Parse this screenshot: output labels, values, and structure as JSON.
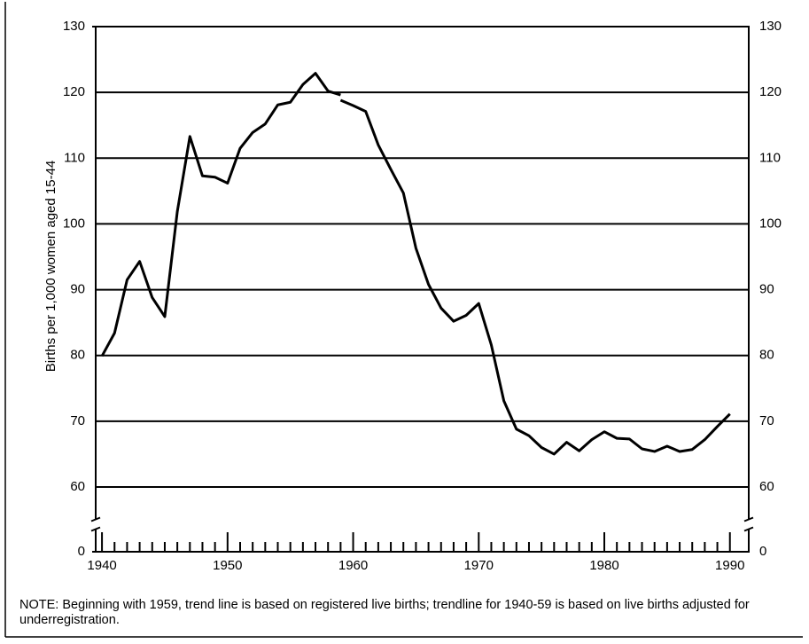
{
  "chart_data": {
    "type": "line",
    "y_label": "Births per 1,000 women aged 15-44",
    "series": [
      {
        "color": "#000000",
        "x": [
          1940,
          1941,
          1942,
          1943,
          1944,
          1945,
          1946,
          1947,
          1948,
          1949,
          1950,
          1951,
          1952,
          1953,
          1954,
          1955,
          1956,
          1957,
          1958,
          1959
        ],
        "values": [
          79.9,
          83.4,
          91.5,
          94.3,
          88.8,
          85.9,
          101.9,
          113.3,
          107.3,
          107.1,
          106.2,
          111.5,
          113.9,
          115.2,
          118.1,
          118.5,
          121.2,
          122.9,
          120.2,
          119.6
        ]
      },
      {
        "color": "#000000",
        "x": [
          1959,
          1960,
          1961,
          1962,
          1963,
          1964,
          1965,
          1966,
          1967,
          1968,
          1969,
          1970,
          1971,
          1972,
          1973,
          1974,
          1975,
          1976,
          1977,
          1978,
          1979,
          1980,
          1981,
          1982,
          1983,
          1984,
          1985,
          1986,
          1987,
          1988,
          1989,
          1990
        ],
        "values": [
          118.8,
          118.0,
          117.1,
          112.0,
          108.3,
          104.7,
          96.3,
          90.8,
          87.2,
          85.2,
          86.1,
          87.9,
          81.6,
          73.1,
          68.8,
          67.8,
          66.0,
          65.0,
          66.8,
          65.5,
          67.2,
          68.4,
          67.4,
          67.3,
          65.8,
          65.4,
          66.2,
          65.4,
          65.7,
          67.2,
          69.2,
          71.1
        ]
      }
    ],
    "xlim": [
      1939.5,
      1991.5
    ],
    "xticks": [
      1940,
      1950,
      1960,
      1970,
      1980,
      1990
    ],
    "xminor_ticks": [
      1941,
      1942,
      1943,
      1944,
      1945,
      1946,
      1947,
      1948,
      1949,
      1951,
      1952,
      1953,
      1954,
      1955,
      1956,
      1957,
      1958,
      1959,
      1961,
      1962,
      1963,
      1964,
      1965,
      1966,
      1967,
      1968,
      1969,
      1971,
      1972,
      1973,
      1974,
      1975,
      1976,
      1977,
      1978,
      1979,
      1981,
      1982,
      1983,
      1984,
      1985,
      1986,
      1987,
      1988,
      1989
    ],
    "ylim": [
      0,
      130
    ],
    "yticks": [
      0,
      60,
      70,
      80,
      90,
      100,
      110,
      120,
      130
    ],
    "y_break": true,
    "grid": true,
    "note": "NOTE: Beginning with 1959, trend line is based on registered live births; trendline for 1940-59 is based on live births adjusted for underregistration."
  }
}
